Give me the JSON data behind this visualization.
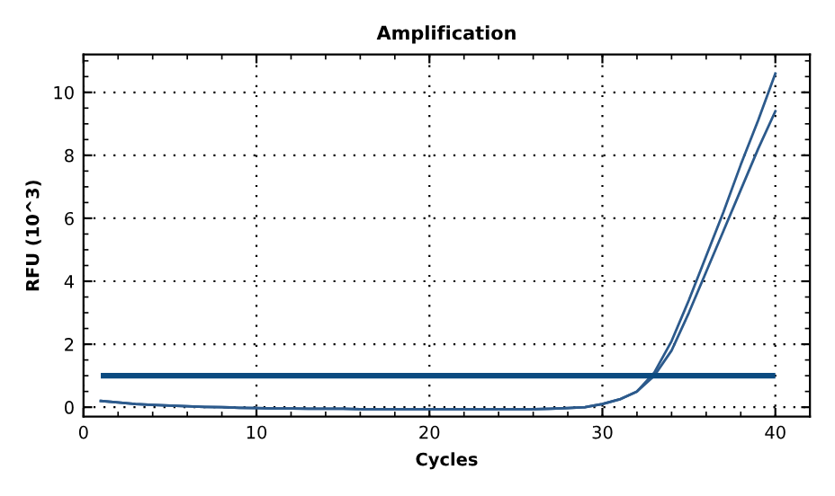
{
  "chart_data": {
    "type": "line",
    "title": "Amplification",
    "xlabel": "Cycles",
    "ylabel": "RFU (10^3)",
    "x": [
      1,
      2,
      3,
      4,
      5,
      6,
      7,
      8,
      9,
      10,
      11,
      12,
      13,
      14,
      15,
      16,
      17,
      18,
      19,
      20,
      21,
      22,
      23,
      24,
      25,
      26,
      27,
      28,
      29,
      30,
      31,
      32,
      33,
      34,
      35,
      36,
      37,
      38,
      39,
      40
    ],
    "series": [
      {
        "color": "#2c5a8c",
        "values": [
          0.2,
          0.15,
          0.1,
          0.07,
          0.05,
          0.03,
          0.01,
          0.0,
          -0.02,
          -0.03,
          -0.04,
          -0.04,
          -0.05,
          -0.05,
          -0.05,
          -0.06,
          -0.06,
          -0.06,
          -0.06,
          -0.06,
          -0.06,
          -0.06,
          -0.06,
          -0.06,
          -0.06,
          -0.06,
          -0.05,
          -0.03,
          0.0,
          0.1,
          0.25,
          0.5,
          1.1,
          2.1,
          3.4,
          4.8,
          6.2,
          7.7,
          9.1,
          10.6
        ]
      },
      {
        "color": "#2c5a8c",
        "values": [
          0.2,
          0.15,
          0.1,
          0.07,
          0.05,
          0.03,
          0.01,
          0.0,
          -0.02,
          -0.03,
          -0.04,
          -0.04,
          -0.05,
          -0.05,
          -0.05,
          -0.06,
          -0.06,
          -0.06,
          -0.06,
          -0.06,
          -0.06,
          -0.06,
          -0.06,
          -0.06,
          -0.06,
          -0.06,
          -0.05,
          -0.03,
          0.0,
          0.1,
          0.25,
          0.5,
          1.0,
          1.8,
          3.0,
          4.3,
          5.6,
          6.9,
          8.2,
          9.4
        ]
      }
    ],
    "ref_lines": [
      {
        "axis": "y",
        "value": 1,
        "color": "#0b4a80"
      }
    ],
    "xlim": [
      0,
      42
    ],
    "ylim": [
      -0.3,
      11.2
    ],
    "xticks": [
      0,
      10,
      20,
      30,
      40
    ],
    "yticks": [
      0,
      2,
      4,
      6,
      8,
      10
    ],
    "grid": true,
    "line_style": "solid",
    "marker": "none",
    "legend": false
  }
}
